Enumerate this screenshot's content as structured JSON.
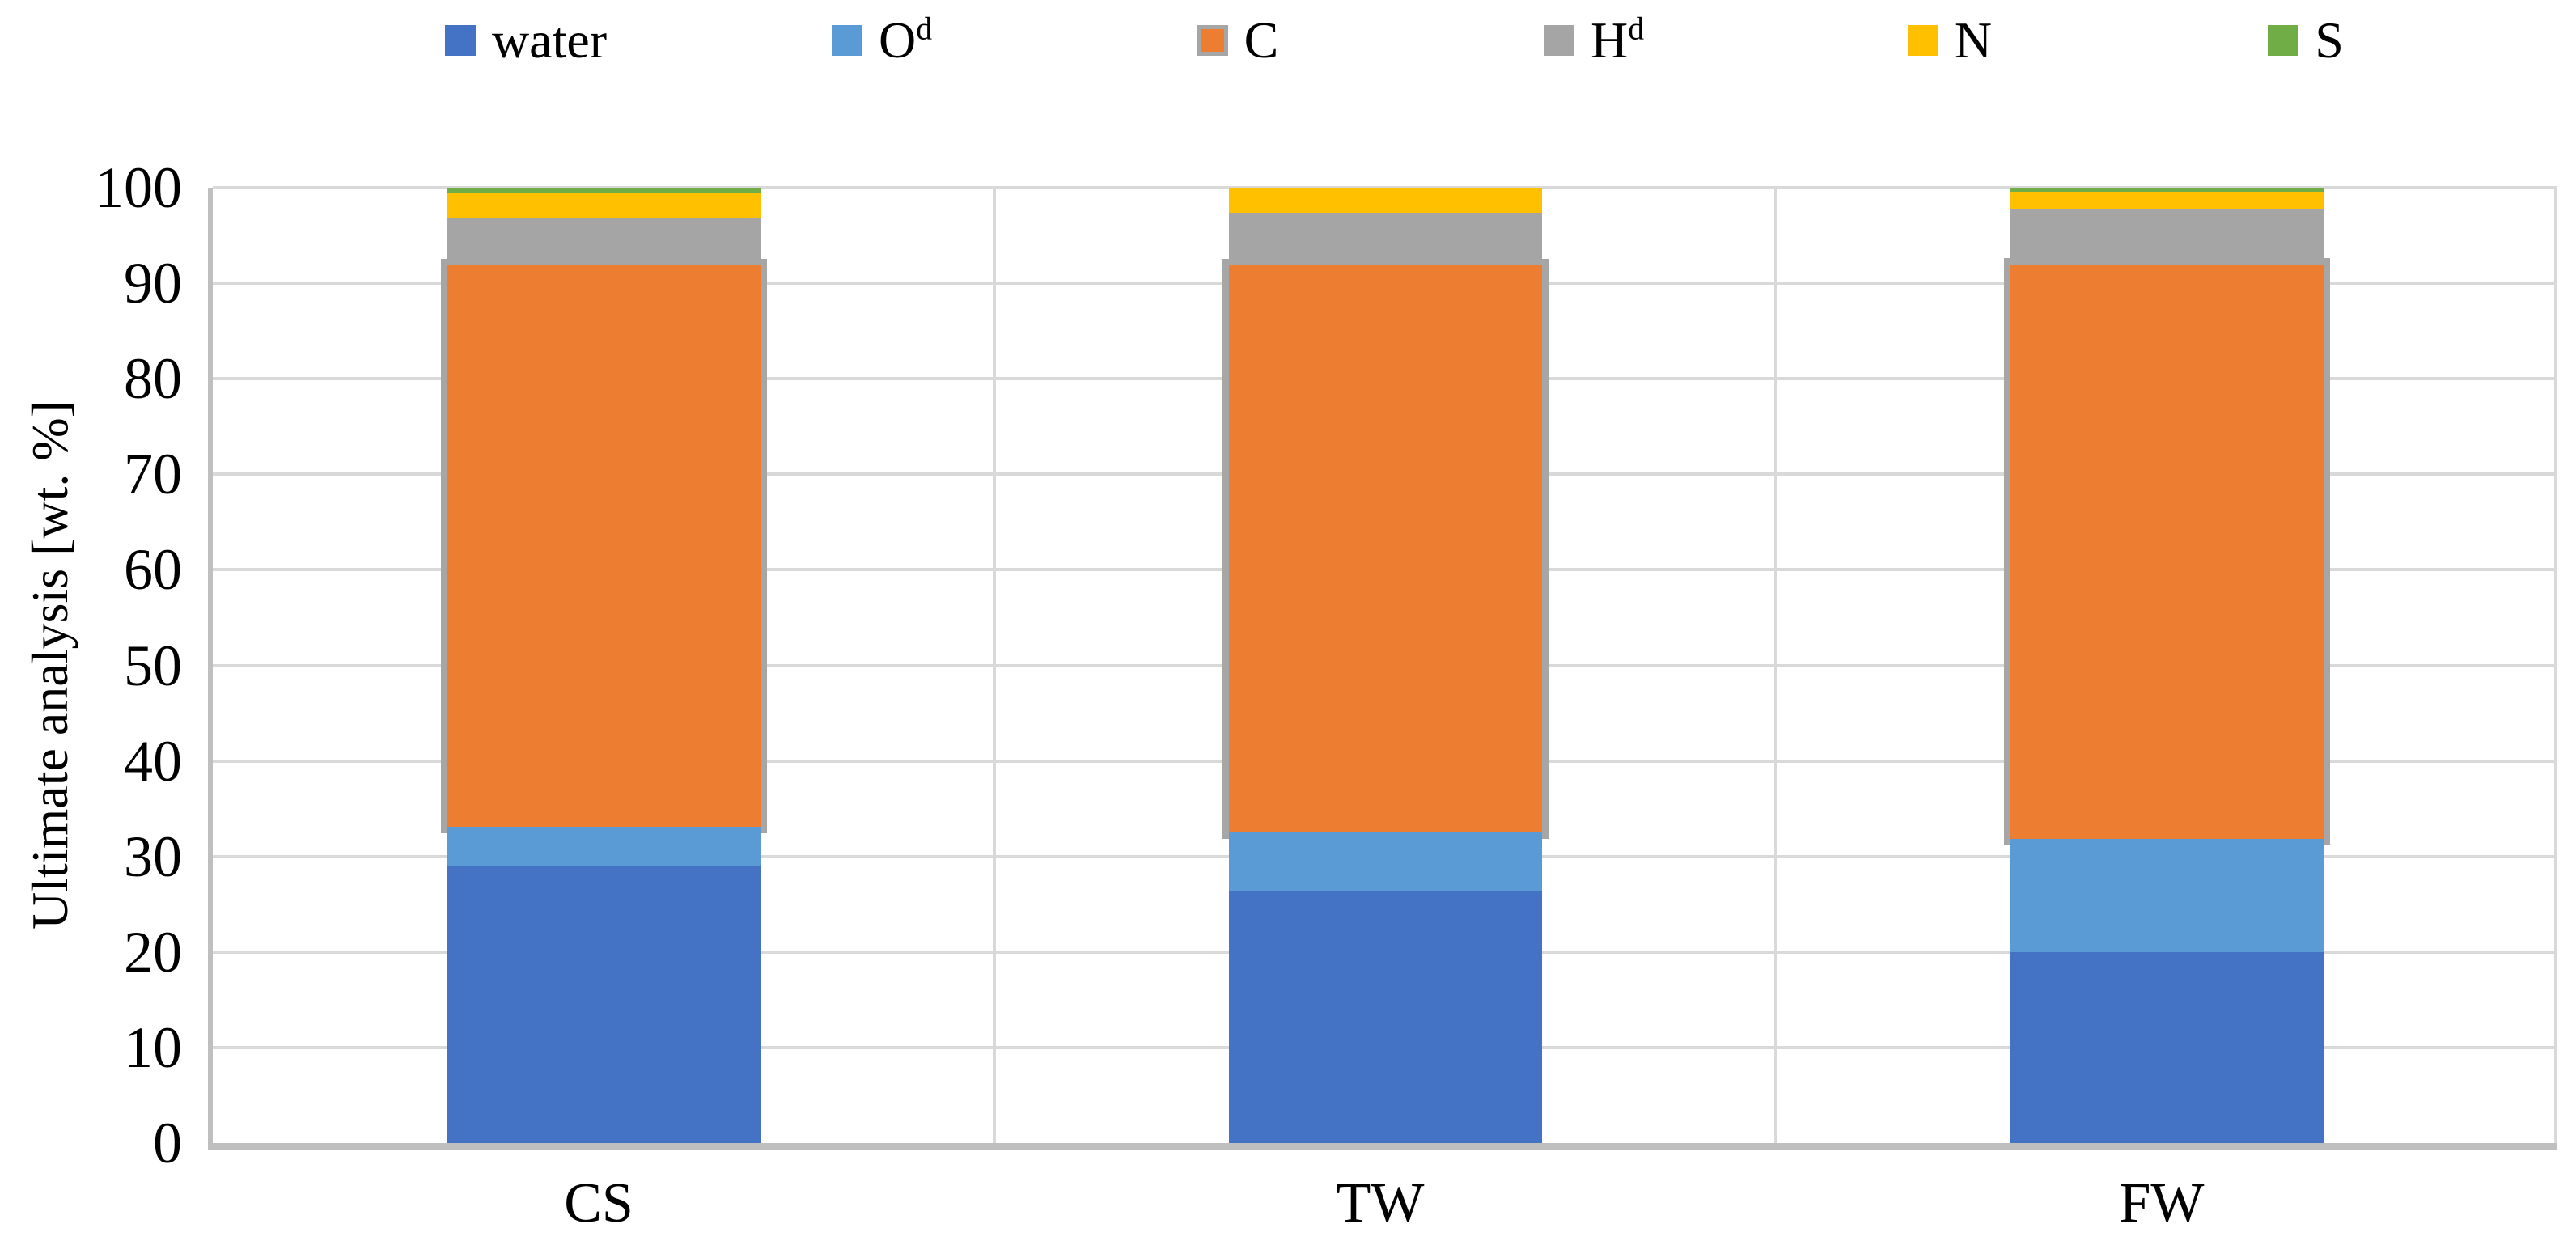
{
  "chart_data": {
    "type": "bar",
    "stacked": true,
    "title": "",
    "xlabel": "",
    "ylabel": "Ultimate analysis [wt. %]",
    "ylim": [
      0,
      100
    ],
    "yticks": [
      0,
      10,
      20,
      30,
      40,
      50,
      60,
      70,
      80,
      90,
      100
    ],
    "grid": true,
    "legend_position": "top",
    "categories": [
      "CS",
      "TW",
      "FW"
    ],
    "series": [
      {
        "name": "water",
        "label": "water",
        "sup": "",
        "color": "#4472C4",
        "values": [
          29.0,
          26.3,
          20.0
        ]
      },
      {
        "name": "O",
        "label": "O",
        "sup": "d",
        "color": "#5B9BD5",
        "values": [
          4.1,
          6.2,
          11.8
        ]
      },
      {
        "name": "C",
        "label": "C",
        "sup": "",
        "color": "#ED7D31",
        "border": "#A6A6A6",
        "values": [
          58.8,
          59.4,
          60.2
        ]
      },
      {
        "name": "H",
        "label": "H",
        "sup": "d",
        "color": "#A5A5A5",
        "values": [
          4.9,
          5.5,
          5.8
        ]
      },
      {
        "name": "N",
        "label": "N",
        "sup": "",
        "color": "#FFC000",
        "values": [
          2.7,
          2.6,
          1.8
        ]
      },
      {
        "name": "S",
        "label": "S",
        "sup": "",
        "color": "#70AD47",
        "values": [
          0.5,
          0.0,
          0.4
        ]
      }
    ],
    "colors": {
      "gridline": "#D9D9D9",
      "axis_line": "#BFBFBF",
      "text": "#000000",
      "background": "#FFFFFF"
    }
  }
}
